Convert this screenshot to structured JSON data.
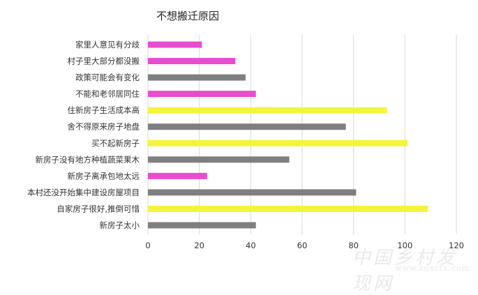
{
  "chart_data": {
    "type": "bar",
    "orientation": "horizontal",
    "title": "不想搬迁原因",
    "xlabel": "",
    "ylabel": "",
    "xlim": [
      0,
      120
    ],
    "xticks": [
      0,
      20,
      40,
      60,
      80,
      100,
      120
    ],
    "grid": "vertical",
    "legend": "none",
    "categories": [
      "家里人意见有分歧",
      "村子里大部分都没搬",
      "政策可能会有变化",
      "不能和老邻居同住",
      "住新房子生活成本高",
      "舍不得原来房子地盘",
      "买不起新房子",
      "新房子没有地方种植蔬菜果木",
      "新房子离承包地太远",
      "本村还没开始集中建设房屋项目",
      "自家房子很好,推倒可惜",
      "新房子太小"
    ],
    "values": [
      21,
      34,
      38,
      42,
      93,
      77,
      101,
      55,
      23,
      81,
      109,
      42
    ],
    "colors": [
      "#e84ccf",
      "#e84ccf",
      "#7f7f7f",
      "#e84ccf",
      "#f4f43c",
      "#7f7f7f",
      "#f4f43c",
      "#7f7f7f",
      "#e84ccf",
      "#7f7f7f",
      "#f4f43c",
      "#7f7f7f"
    ]
  },
  "watermark": {
    "text": "中国乡村发现网",
    "url": "www.zgxcfx.com"
  }
}
